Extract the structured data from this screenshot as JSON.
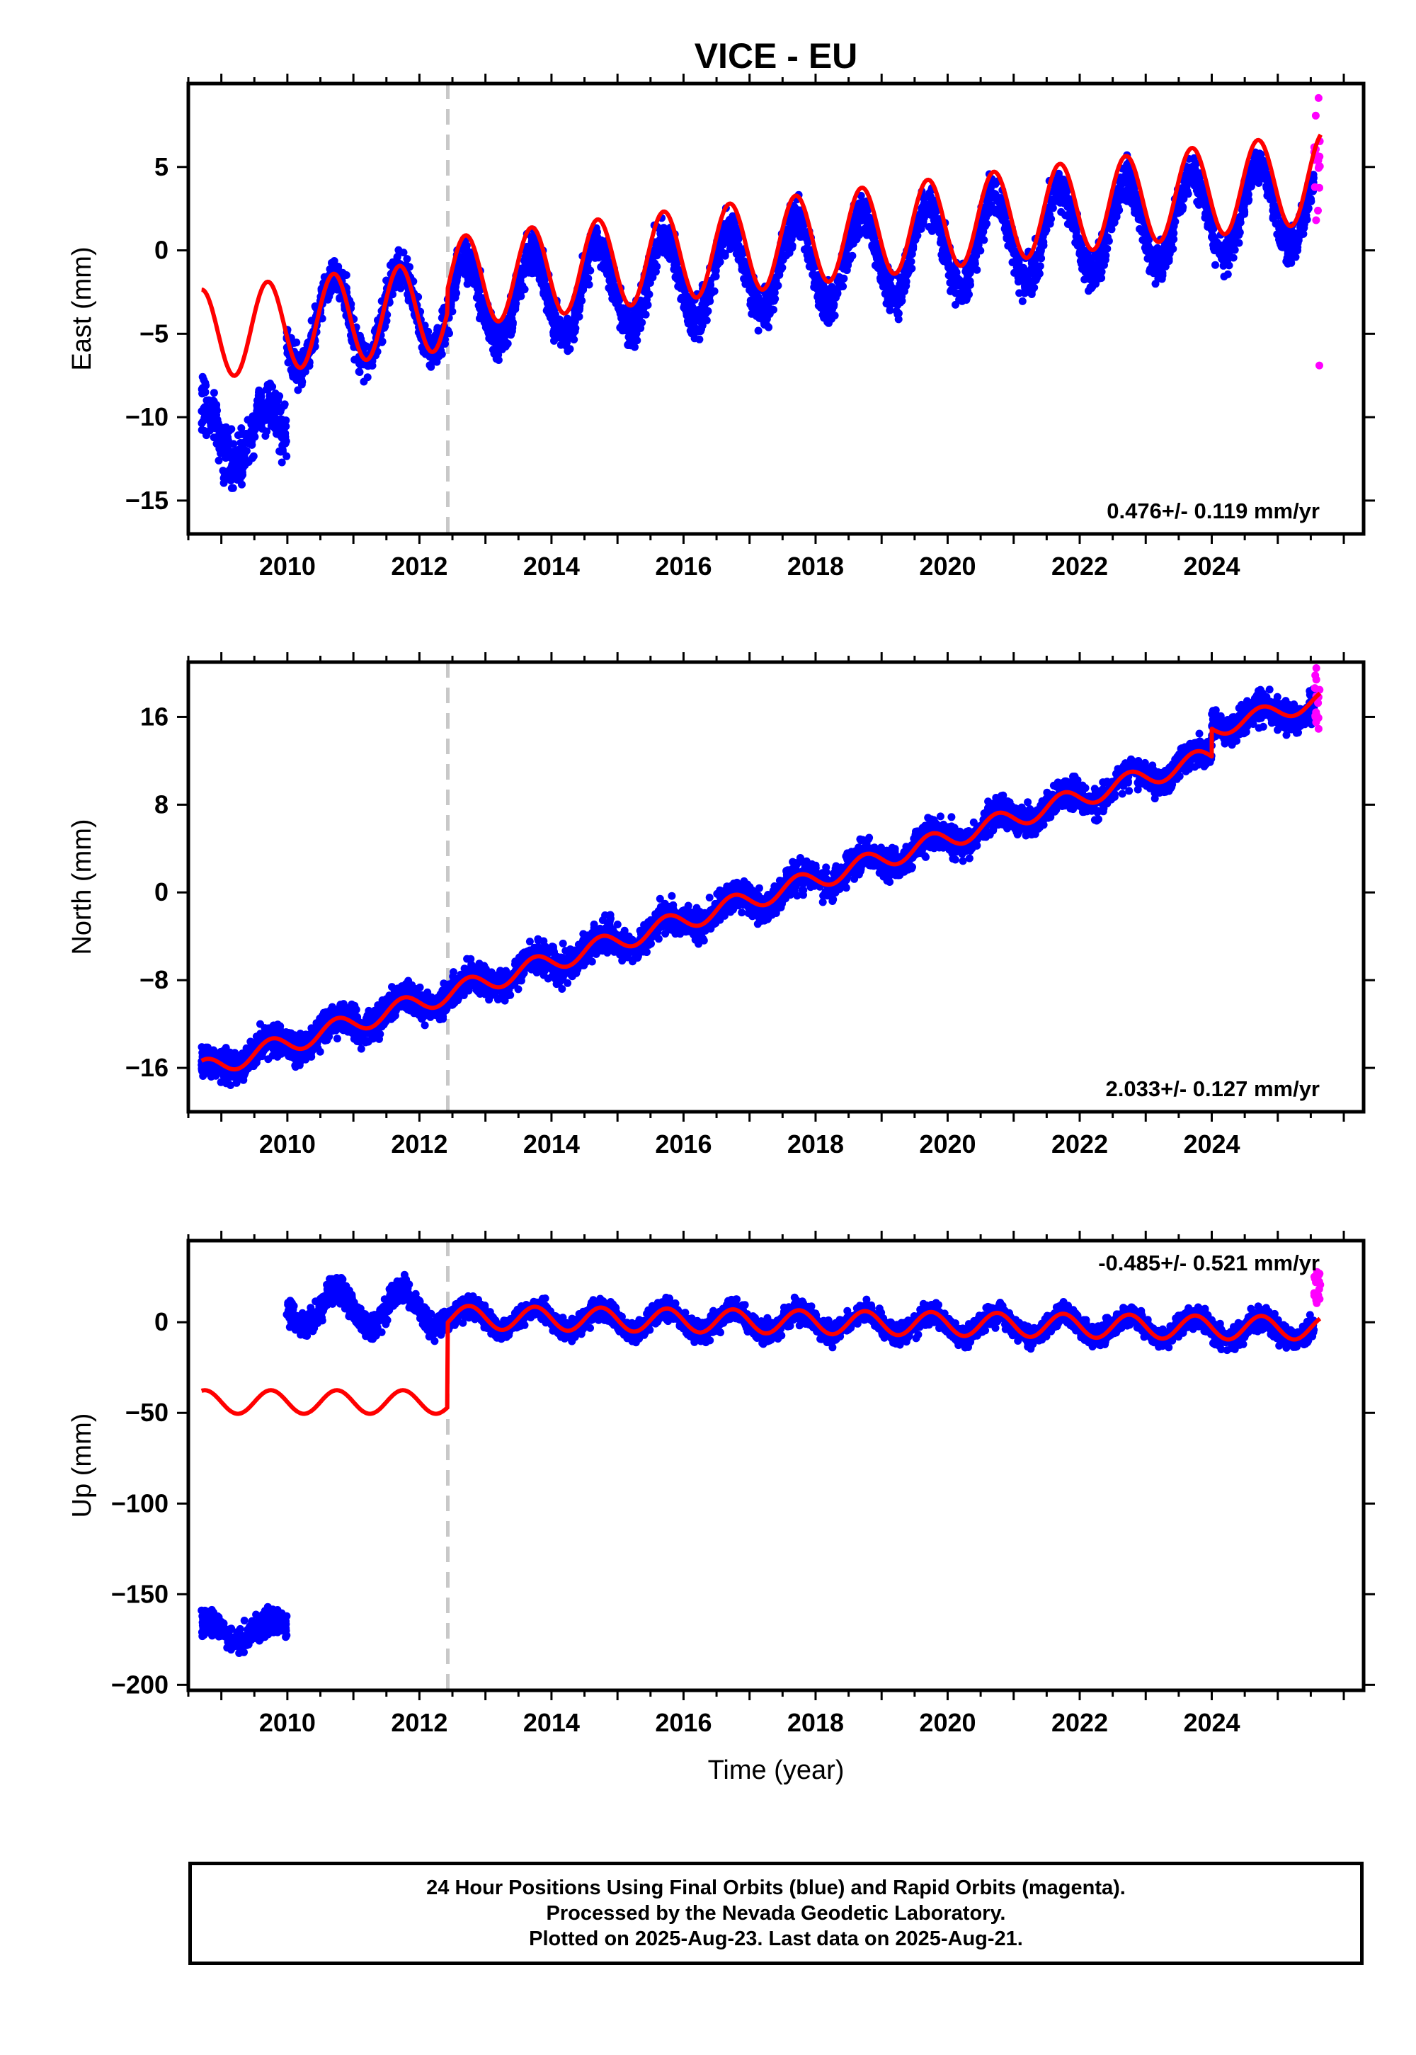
{
  "title": "VICE - EU",
  "xlabel": "Time (year)",
  "footer": {
    "line1": "24 Hour Positions Using Final Orbits (blue) and Rapid Orbits (magenta).",
    "line2": "Processed by the Nevada Geodetic Laboratory.",
    "line3": "Plotted on 2025-Aug-23. Last data on 2025-Aug-21."
  },
  "colors": {
    "final": "#0000ff",
    "rapid": "#ff00ff",
    "model": "#ff0000",
    "step": "#c8c8c8"
  },
  "chart_data": [
    {
      "type": "scatter",
      "ylabel": "East (mm)",
      "rate": "0.476+/- 0.119 mm/yr",
      "xlim": [
        2008.5,
        2026.3
      ],
      "ylim": [
        -17,
        10
      ],
      "xticks": [
        2010,
        2012,
        2014,
        2016,
        2018,
        2020,
        2022,
        2024
      ],
      "yticks": [
        -15,
        -10,
        -5,
        0,
        5
      ],
      "equipment_change": 2012.43,
      "series": [
        {
          "data_role": "final",
          "x_start": 2008.7,
          "x_end": 2025.55,
          "segments": [
            {
              "from": 2008.7,
              "to": 2009.99,
              "mean": -11.0,
              "trend": 0.0,
              "amp": 2.0,
              "phase": 0.45,
              "noise": 1.4
            },
            {
              "from": 2009.99,
              "to": 2025.55,
              "mean": -1.2,
              "trend": 0.476,
              "amp": 2.6,
              "phase": 0.45,
              "noise": 1.0,
              "t0": 2017.0
            }
          ]
        },
        {
          "data_role": "rapid",
          "x_start": 2025.55,
          "x_end": 2025.65,
          "values_range": [
            1.8,
            9.3
          ],
          "outlier": -6.9
        },
        {
          "data_role": "model",
          "segments": [
            {
              "from": 2008.7,
              "to": 2012.43,
              "mean": -4.2,
              "trend": 0.476,
              "amp": 2.7,
              "phase": 0.45,
              "t0": 2010.5
            },
            {
              "from": 2012.43,
              "to": 2025.65,
              "mean": 1.2,
              "trend": 0.476,
              "amp": 2.7,
              "phase": 0.45,
              "t0": 2019.0
            }
          ]
        }
      ]
    },
    {
      "type": "scatter",
      "ylabel": "North (mm)",
      "rate": "2.033+/- 0.127 mm/yr",
      "xlim": [
        2008.5,
        2026.3
      ],
      "ylim": [
        -20,
        21
      ],
      "xticks": [
        2010,
        2012,
        2014,
        2016,
        2018,
        2020,
        2022,
        2024
      ],
      "yticks": [
        -16,
        -8,
        0,
        8,
        16
      ],
      "equipment_change": 2012.43,
      "series": [
        {
          "data_role": "final",
          "x_start": 2008.7,
          "x_end": 2025.55,
          "segments": [
            {
              "from": 2008.7,
              "to": 2024.0,
              "mean": -2.0,
              "trend": 1.87,
              "amp": 0.9,
              "phase": 0.5,
              "noise": 1.2,
              "t0": 2016.3
            },
            {
              "from": 2024.0,
              "to": 2025.55,
              "mean": 16.2,
              "trend": 1.0,
              "amp": 0.8,
              "phase": 0.5,
              "noise": 1.2,
              "t0": 2024.8
            }
          ]
        },
        {
          "data_role": "rapid",
          "x_start": 2025.55,
          "x_end": 2025.65,
          "values_range": [
            14.5,
            20.5
          ]
        },
        {
          "data_role": "model",
          "segments": [
            {
              "from": 2008.7,
              "to": 2024.0,
              "mean": -2.0,
              "trend": 1.87,
              "amp": 0.9,
              "phase": 0.5,
              "t0": 2016.3
            },
            {
              "from": 2024.0,
              "to": 2025.65,
              "mean": 16.2,
              "trend": 1.6,
              "amp": 0.8,
              "phase": 0.5,
              "t0": 2024.8
            }
          ]
        }
      ]
    },
    {
      "type": "scatter",
      "ylabel": "Up (mm)",
      "rate": "-0.485+/- 0.521 mm/yr",
      "xlim": [
        2008.5,
        2026.3
      ],
      "ylim": [
        -203,
        45
      ],
      "xticks": [
        2010,
        2012,
        2014,
        2016,
        2018,
        2020,
        2022,
        2024
      ],
      "yticks": [
        -200,
        -150,
        -100,
        -50,
        0
      ],
      "equipment_change": 2012.43,
      "series": [
        {
          "data_role": "final",
          "x_start": 2008.7,
          "x_end": 2025.55,
          "segments": [
            {
              "from": 2008.7,
              "to": 2009.99,
              "mean": -170.0,
              "trend": 0.0,
              "amp": 5.0,
              "phase": 0.5,
              "noise": 6.0
            },
            {
              "from": 2009.99,
              "to": 2012.43,
              "mean": 8.0,
              "trend": 0.0,
              "amp": 10.0,
              "phase": 0.5,
              "noise": 6.0
            },
            {
              "from": 2012.43,
              "to": 2024.0,
              "mean": 0.0,
              "trend": -0.485,
              "amp": 6.0,
              "phase": 0.5,
              "noise": 5.0,
              "t0": 2018.0
            },
            {
              "from": 2024.0,
              "to": 2025.55,
              "mean": -4.0,
              "trend": 0.0,
              "amp": 6.0,
              "phase": 0.5,
              "noise": 5.0
            }
          ]
        },
        {
          "data_role": "rapid",
          "x_start": 2025.55,
          "x_end": 2025.65,
          "values_range": [
            10.0,
            28.0
          ]
        },
        {
          "data_role": "model",
          "segments": [
            {
              "from": 2008.7,
              "to": 2012.43,
              "mean": -44.0,
              "trend": 0.0,
              "amp": 6.5,
              "phase": 0.5
            },
            {
              "from": 2012.43,
              "to": 2024.0,
              "mean": 0.0,
              "trend": -0.485,
              "amp": 6.5,
              "phase": 0.5,
              "t0": 2018.0
            },
            {
              "from": 2024.0,
              "to": 2025.65,
              "mean": -3.0,
              "trend": 0.0,
              "amp": 6.5,
              "phase": 0.5
            }
          ]
        }
      ]
    }
  ]
}
